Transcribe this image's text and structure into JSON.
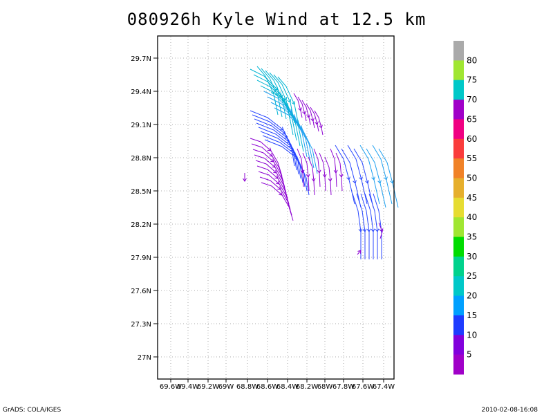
{
  "title": "080926h Kyle Wind at 12.5 km",
  "footer_left": "GrADS: COLA/IGES",
  "footer_right": "2010-02-08-16:08",
  "map": {
    "lat_labels": [
      "29.7N",
      "29.4N",
      "29.1N",
      "28.8N",
      "28.5N",
      "28.2N",
      "27.9N",
      "27.6N",
      "27.3N",
      "27N"
    ],
    "lon_labels": [
      "69.6W",
      "69.4W",
      "69.2W",
      "69W",
      "68.8W",
      "68.6W",
      "68.4W",
      "68.2W",
      "68W",
      "67.8W",
      "67.6W",
      "67.4W"
    ],
    "lat_range": [
      26.8,
      29.95
    ],
    "lon_range": [
      -69.75,
      -67.32
    ],
    "grid": "dotted"
  },
  "colorbar": {
    "labels": [
      "5",
      "10",
      "15",
      "20",
      "25",
      "30",
      "35",
      "40",
      "45",
      "50",
      "55",
      "60",
      "65",
      "70",
      "75",
      "80"
    ],
    "colors": [
      "#a000c8",
      "#8200dc",
      "#1e3cff",
      "#00a0ff",
      "#00c8c8",
      "#00d28c",
      "#00dc00",
      "#a0e632",
      "#e6dc32",
      "#e6af2d",
      "#f08228",
      "#fa3c3c",
      "#f00082",
      "#a000c8",
      "#00c8c8",
      "#a0e632",
      "#aaaaaa"
    ]
  },
  "streamlines_color_note": "purple=5-10, blue=15, light blue=20-25"
}
